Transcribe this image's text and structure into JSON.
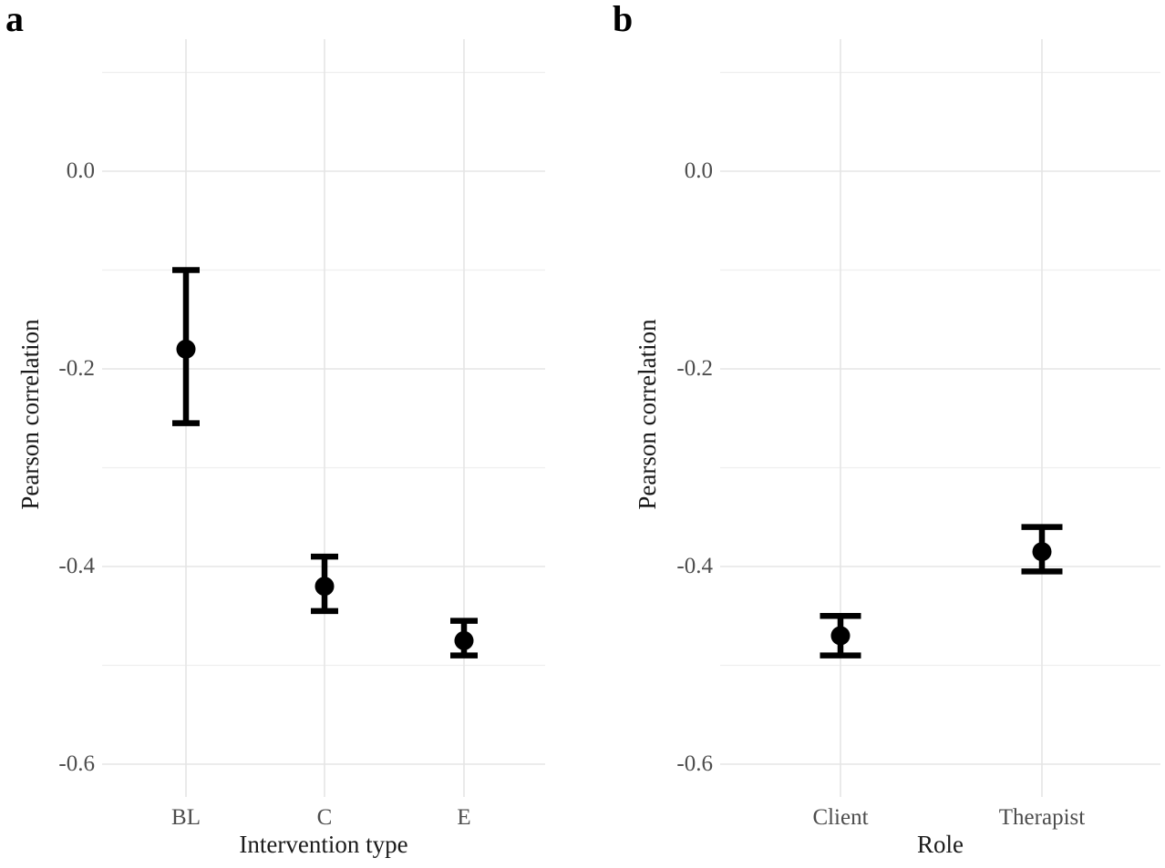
{
  "figure": {
    "description": "Two-panel point-range plot of Pearson correlations with 95% confidence-interval error bars"
  },
  "chart_data": [
    {
      "type": "scatter",
      "subtype": "point-with-error-bars",
      "panel_label": "a",
      "title": "",
      "xlabel": "Intervention type",
      "ylabel": "Pearson correlation",
      "categories": [
        "BL",
        "C",
        "E"
      ],
      "series": [
        {
          "name": "Pearson correlation",
          "values": [
            -0.18,
            -0.42,
            -0.475
          ],
          "ci_low": [
            -0.255,
            -0.445,
            -0.49
          ],
          "ci_high": [
            -0.1,
            -0.39,
            -0.455
          ]
        }
      ],
      "yticks": [
        "0.0",
        "-0.2",
        "-0.4",
        "-0.6"
      ],
      "ytick_values": [
        0.0,
        -0.2,
        -0.4,
        -0.6
      ],
      "yminor_values": [
        0.1,
        -0.1,
        -0.3,
        -0.5
      ],
      "ylim": [
        -0.63,
        0.13
      ],
      "grid": "major+minor",
      "legend": "none"
    },
    {
      "type": "scatter",
      "subtype": "point-with-error-bars",
      "panel_label": "b",
      "title": "",
      "xlabel": "Role",
      "ylabel": "Pearson correlation",
      "categories": [
        "Client",
        "Therapist"
      ],
      "series": [
        {
          "name": "Pearson correlation",
          "values": [
            -0.47,
            -0.385
          ],
          "ci_low": [
            -0.49,
            -0.405
          ],
          "ci_high": [
            -0.45,
            -0.36
          ]
        }
      ],
      "yticks": [
        "0.0",
        "-0.2",
        "-0.4",
        "-0.6"
      ],
      "ytick_values": [
        0.0,
        -0.2,
        -0.4,
        -0.6
      ],
      "yminor_values": [
        0.1,
        -0.1,
        -0.3,
        -0.5
      ],
      "ylim": [
        -0.63,
        0.13
      ],
      "grid": "major+minor",
      "legend": "none"
    }
  ],
  "colors": {
    "background": "#ffffff",
    "point": "#000000",
    "errorbar": "#000000",
    "grid_major": "#e5e5e5",
    "grid_minor": "#efefef",
    "tick_label": "#4d4d4d",
    "axis_title": "#1a1a1a",
    "panel_letter": "#000000"
  }
}
